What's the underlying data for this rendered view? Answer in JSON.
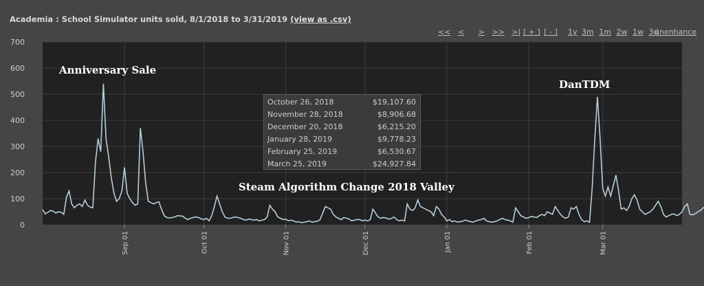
{
  "header": {
    "title": "Academia : School Simulator units sold, 8/1/2018 to 3/31/2019",
    "csv_link": "(view as .csv)"
  },
  "nav": {
    "pan": [
      "<<",
      "<",
      ">",
      ">>",
      ">|"
    ],
    "zoom": [
      "[ + ]",
      "[ - ]"
    ],
    "ranges": [
      "1y",
      "3m",
      "1m",
      "2w",
      "1w",
      "3d"
    ],
    "unenhance": "unenhance"
  },
  "tooltip": {
    "rows": [
      {
        "date": "October 26, 2018",
        "amount": "$19,107.60"
      },
      {
        "date": "November 28, 2018",
        "amount": "$8,906.68"
      },
      {
        "date": "December 20, 2018",
        "amount": "$6,215.20"
      },
      {
        "date": "January 28, 2019",
        "amount": "$9,778.23"
      },
      {
        "date": "February 25, 2019",
        "amount": "$6,530.67"
      },
      {
        "date": "March 25, 2019",
        "amount": "$24,927.84"
      }
    ]
  },
  "annotations": {
    "anniversary": "Anniversary Sale",
    "dantdm": "DanTDM",
    "valley": "Steam Algorithm Change 2018 Valley"
  },
  "colors": {
    "plot_bg": "#212121",
    "line": "#b6cfdb",
    "grid": "#3d3d3d",
    "page_bg": "#454545"
  },
  "chart_data": {
    "type": "line",
    "title": "Academia : School Simulator units sold, 8/1/2018 to 3/31/2019",
    "x_start": "2018-08-01",
    "x_end": "2019-03-31",
    "ylim": [
      0,
      700
    ],
    "y_ticks": [
      0,
      100,
      200,
      300,
      400,
      500,
      600,
      700
    ],
    "x_ticks": [
      {
        "date": "2018-09-01",
        "label": "Sep 01"
      },
      {
        "date": "2018-10-01",
        "label": "Oct 01"
      },
      {
        "date": "2018-11-01",
        "label": "Nov 01"
      },
      {
        "date": "2018-12-01",
        "label": "Dec 01"
      },
      {
        "date": "2019-01-01",
        "label": "Jan 01"
      },
      {
        "date": "2019-02-01",
        "label": "Feb 01"
      },
      {
        "date": "2019-03-01",
        "label": "Mar 01"
      }
    ],
    "grid": true,
    "series": [
      {
        "values": [
          58,
          42,
          48,
          55,
          52,
          45,
          50,
          48,
          40,
          105,
          130,
          80,
          65,
          75,
          80,
          70,
          95,
          75,
          68,
          65,
          240,
          330,
          280,
          540,
          330,
          260,
          180,
          120,
          90,
          100,
          130,
          220,
          120,
          100,
          85,
          75,
          80,
          370,
          280,
          160,
          90,
          85,
          80,
          85,
          88,
          60,
          35,
          28,
          26,
          28,
          30,
          35,
          34,
          33,
          25,
          20,
          25,
          28,
          30,
          28,
          23,
          20,
          25,
          15,
          35,
          70,
          110,
          80,
          50,
          30,
          25,
          25,
          28,
          30,
          28,
          25,
          20,
          18,
          22,
          20,
          18,
          20,
          15,
          18,
          20,
          30,
          75,
          60,
          50,
          30,
          25,
          20,
          22,
          15,
          18,
          15,
          10,
          12,
          8,
          10,
          12,
          15,
          10,
          12,
          14,
          20,
          45,
          70,
          65,
          60,
          40,
          30,
          25,
          20,
          28,
          25,
          22,
          15,
          18,
          20,
          20,
          15,
          18,
          15,
          20,
          60,
          45,
          30,
          25,
          28,
          26,
          22,
          24,
          30,
          20,
          15,
          18,
          15,
          80,
          60,
          55,
          65,
          95,
          70,
          65,
          60,
          55,
          50,
          35,
          70,
          60,
          40,
          30,
          15,
          20,
          12,
          15,
          10,
          12,
          14,
          18,
          15,
          12,
          10,
          15,
          18,
          20,
          25,
          15,
          12,
          10,
          12,
          15,
          20,
          25,
          20,
          18,
          15,
          10,
          65,
          50,
          35,
          30,
          25,
          28,
          32,
          30,
          28,
          35,
          40,
          35,
          50,
          45,
          40,
          70,
          55,
          40,
          30,
          25,
          30,
          65,
          60,
          70,
          40,
          20,
          12,
          15,
          10,
          140,
          330,
          490,
          330,
          140,
          110,
          145,
          110,
          150,
          190,
          130,
          60,
          65,
          55,
          70,
          100,
          115,
          95,
          60,
          50,
          40,
          45,
          50,
          60,
          75,
          90,
          70,
          40,
          30,
          35,
          40,
          42,
          35,
          40,
          50,
          70,
          80,
          40,
          38,
          42,
          50,
          55,
          65,
          70,
          85,
          100,
          60
        ]
      }
    ]
  }
}
